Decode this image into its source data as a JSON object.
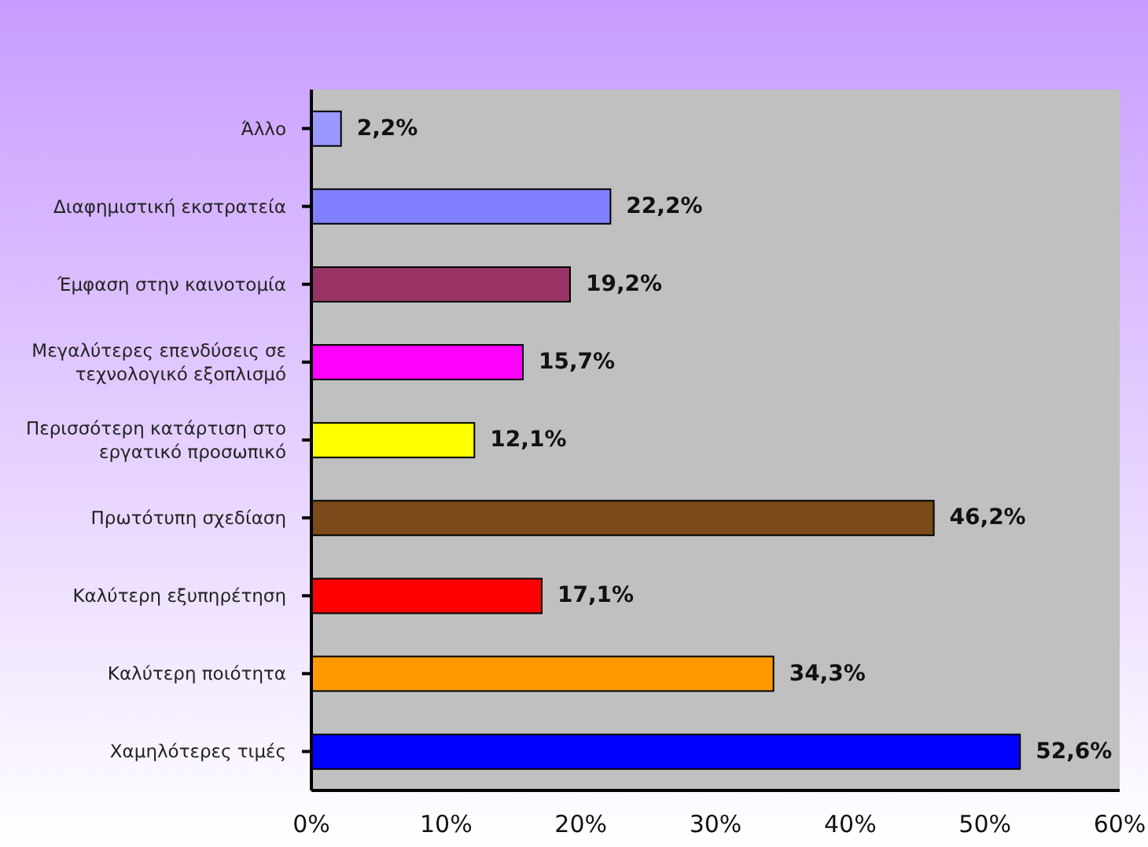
{
  "chart_data": {
    "type": "bar",
    "orientation": "horizontal",
    "categories": [
      "Άλλο",
      "Διαφημιστική εκστρατεία",
      "Έμφαση στην καινοτομία",
      "Μεγαλύτερες επενδύσεις σε τεχνολογικό εξοπλισμό",
      "Περισσότερη κατάρτιση στο εργατικό προσωπικό",
      "Πρωτότυπη σχεδίαση",
      "Καλύτερη εξυπηρέτηση",
      "Καλύτερη ποιότητα",
      "Χαμηλότερες τιμές"
    ],
    "values": [
      2.2,
      22.2,
      19.2,
      15.7,
      12.1,
      46.2,
      17.1,
      34.3,
      52.6
    ],
    "value_labels": [
      "2,2%",
      "22,2%",
      "19,2%",
      "15,7%",
      "12,1%",
      "46,2%",
      "17,1%",
      "34,3%",
      "52,6%"
    ],
    "colors": [
      "#9999ff",
      "#8080ff",
      "#993366",
      "#ff00ff",
      "#ffff00",
      "#7a4a1a",
      "#ff0000",
      "#ff9900",
      "#0000ff"
    ],
    "xlim": [
      0,
      60
    ],
    "xticks": [
      {
        "value": 0,
        "label": "0%"
      },
      {
        "value": 10,
        "label": "10%"
      },
      {
        "value": 20,
        "label": "20%"
      },
      {
        "value": 30,
        "label": "30%"
      },
      {
        "value": 40,
        "label": "40%"
      },
      {
        "value": 50,
        "label": "50%"
      },
      {
        "value": 60,
        "label": "60%"
      }
    ],
    "grid": false,
    "legend": false
  }
}
